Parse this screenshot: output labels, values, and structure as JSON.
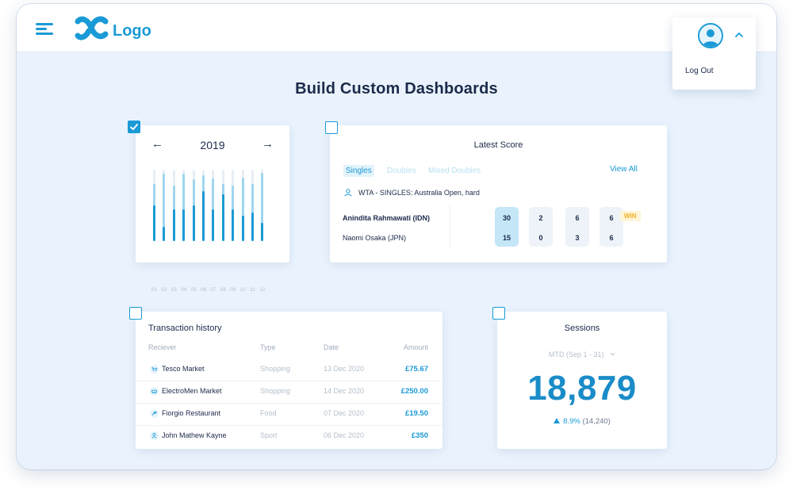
{
  "header": {
    "logo_text": "Logo",
    "user_menu": {
      "logout_label": "Log Out"
    }
  },
  "page": {
    "title": "Build Custom Dashboards"
  },
  "bars_widget": {
    "year": "2019",
    "prev_arrow": "←",
    "next_arrow": "→",
    "months": [
      "01",
      "02",
      "03",
      "04",
      "05",
      "06",
      "07",
      "08",
      "09",
      "10",
      "11",
      "12"
    ],
    "dark_values": [
      0.5,
      0.2,
      0.44,
      0.44,
      0.5,
      0.7,
      0.44,
      0.66,
      0.44,
      0.36,
      0.4,
      0.26
    ],
    "light_values": [
      0.8,
      0.94,
      0.78,
      0.94,
      0.87,
      0.92,
      0.88,
      0.8,
      0.78,
      0.89,
      0.8,
      0.95
    ],
    "checked": true,
    "colors": {
      "dark": "#1a9ad6",
      "light": "#9fd6ef"
    }
  },
  "score": {
    "title": "Latest Score",
    "tabs": [
      "Singles",
      "Doubles",
      "Mixed Doubles"
    ],
    "view_all": "View All",
    "tournament": "WTA - SINGLES: Australia Open, hard",
    "players": [
      "Anindita Rahmawati (IDN)",
      "Naomi Osaka (JPN)"
    ],
    "sets": [
      [
        "30",
        "15"
      ],
      [
        "2",
        "0"
      ],
      [
        "6",
        "3"
      ],
      [
        "6",
        "6"
      ]
    ],
    "badge": "WIN"
  },
  "transactions": {
    "title": "Transaction history",
    "columns": [
      "Reciever",
      "Type",
      "Date",
      "Amount"
    ],
    "rows": [
      {
        "icon": "cart-icon",
        "name": "Tesco Market",
        "type": "Shopping",
        "date": "13 Dec 2020",
        "amount": "£75.67"
      },
      {
        "icon": "car-icon",
        "name": "ElectroMen Market",
        "type": "Shopping",
        "date": "14 Dec 2020",
        "amount": "£250.00"
      },
      {
        "icon": "food-icon",
        "name": "Fiorgio Restaurant",
        "type": "Food",
        "date": "07 Dec 2020",
        "amount": "£19.50"
      },
      {
        "icon": "person-icon",
        "name": "John Mathew Kayne",
        "type": "Sport",
        "date": "06 Dec 2020",
        "amount": "£350"
      }
    ]
  },
  "sessions": {
    "title": "Sessions",
    "period": "MTD (Sep 1 - 31)",
    "value": "18,879",
    "delta_pct": "8.9%",
    "delta_prev": "(14,240)"
  }
}
